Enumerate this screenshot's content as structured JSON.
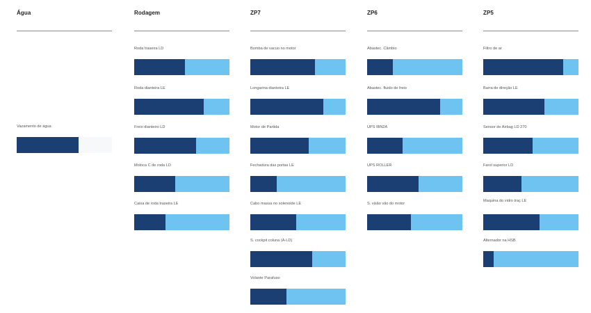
{
  "colors": {
    "filled": "#1b3f73",
    "remaining": "#6ec3f1",
    "remaining_alt": "#f6f8fa"
  },
  "columns": [
    {
      "title": "Água",
      "items": [
        {
          "label": "Vazamento de água",
          "progress": 0.65,
          "remaining_color": "#f6f8fa"
        }
      ]
    },
    {
      "title": "Rodagem",
      "items": [
        {
          "label": "Roda traseira LD",
          "progress": 0.53
        },
        {
          "label": "Roda dianteira LE",
          "progress": 0.73
        },
        {
          "label": "Freio dianteiro LD",
          "progress": 0.65
        },
        {
          "label": "Moloca C de roda LD",
          "progress": 0.43
        },
        {
          "label": "Caixa de roda traseira LE",
          "progress": 0.33
        }
      ]
    },
    {
      "title": "ZP7",
      "items": [
        {
          "label": "Bomba de vacuo no motor",
          "progress": 0.68
        },
        {
          "label": "Longarina dianteira LE",
          "progress": 0.77
        },
        {
          "label": "Motor de Partida",
          "progress": 0.61
        },
        {
          "label": "Fechadura das portas LE",
          "progress": 0.28
        },
        {
          "label": "Cabo massa no solenoide LE",
          "progress": 0.48
        },
        {
          "label": "S. cockpit coluna (A-LD)",
          "progress": 0.65
        },
        {
          "label": "Volante Parafuso",
          "progress": 0.38
        }
      ]
    },
    {
      "title": "ZP6",
      "items": [
        {
          "label": "Abastec. Câmbio",
          "progress": 0.27
        },
        {
          "label": "Abastec. fluido de freio",
          "progress": 0.77
        },
        {
          "label": "UPS IBN2A",
          "progress": 0.37
        },
        {
          "label": "UPS ROLLER",
          "progress": 0.54
        },
        {
          "label": "S. visão vão do motor",
          "progress": 0.46
        }
      ]
    },
    {
      "title": "ZP5",
      "items": [
        {
          "label": "Filtro de ar",
          "progress": 0.84
        },
        {
          "label": "Barra de direção LE",
          "progress": 0.64
        },
        {
          "label": "Sensor de Airbag LD 270",
          "progress": 0.52
        },
        {
          "label": "Farol superior LD",
          "progress": 0.4
        },
        {
          "label": "Maquina do vidro traç LE",
          "progress": 0.59
        },
        {
          "label": "Alternador na HSB",
          "progress": 0.11
        }
      ]
    }
  ]
}
